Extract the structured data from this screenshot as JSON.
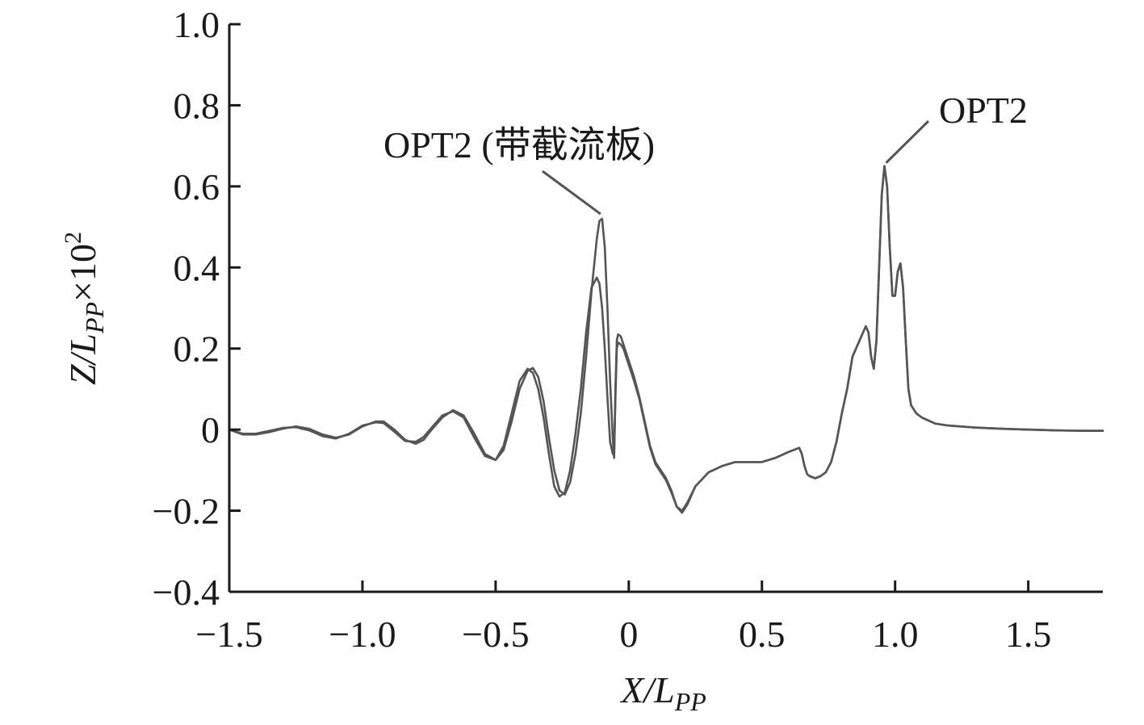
{
  "chart_data": {
    "type": "line",
    "title": "",
    "xlabel": {
      "main": "X/L",
      "sub": "PP"
    },
    "ylabel": {
      "main": "Z/L",
      "sub": "PP",
      "suffix": "×10",
      "sup": "2"
    },
    "xlim": [
      -1.5,
      1.78
    ],
    "ylim": [
      -0.4,
      1.0
    ],
    "xticks": [
      -1.5,
      -1.0,
      -0.5,
      0,
      0.5,
      1.0,
      1.5
    ],
    "xtick_labels": [
      "−1.5",
      "−1.0",
      "−0.5",
      "0",
      "0.5",
      "1.0",
      "1.5"
    ],
    "yticks": [
      -0.4,
      -0.2,
      0,
      0.2,
      0.4,
      0.6,
      0.8,
      1.0
    ],
    "ytick_labels": [
      "−0.4",
      "−0.2",
      "0",
      "0.2",
      "0.4",
      "0.6",
      "0.8",
      "1.0"
    ],
    "grid": false,
    "series": [
      {
        "name": "OPT2 (带截流板)",
        "x": [
          -1.5,
          -1.45,
          -1.4,
          -1.35,
          -1.3,
          -1.25,
          -1.2,
          -1.15,
          -1.1,
          -1.05,
          -1.0,
          -0.95,
          -0.92,
          -0.88,
          -0.84,
          -0.8,
          -0.77,
          -0.74,
          -0.7,
          -0.66,
          -0.62,
          -0.58,
          -0.54,
          -0.5,
          -0.47,
          -0.44,
          -0.41,
          -0.38,
          -0.36,
          -0.34,
          -0.32,
          -0.3,
          -0.28,
          -0.26,
          -0.24,
          -0.22,
          -0.2,
          -0.18,
          -0.16,
          -0.14,
          -0.12,
          -0.11,
          -0.1,
          -0.09,
          -0.08,
          -0.07,
          -0.06,
          -0.055,
          -0.05,
          -0.045,
          -0.04,
          -0.03,
          -0.02,
          -0.01,
          0.0,
          0.02,
          0.04,
          0.06,
          0.08,
          0.1,
          0.12,
          0.14,
          0.16,
          0.18,
          0.2,
          0.22,
          0.25,
          0.3,
          0.35,
          0.4,
          0.45,
          0.5,
          0.55,
          0.6,
          0.62,
          0.64,
          0.65,
          0.66,
          0.67,
          0.68,
          0.7,
          0.72,
          0.74,
          0.76,
          0.78,
          0.8,
          0.82,
          0.84,
          0.86,
          0.88,
          0.89,
          0.9,
          0.91,
          0.92,
          0.93,
          0.94,
          0.95,
          0.96,
          0.97,
          0.98,
          0.99,
          1.0,
          1.01,
          1.02,
          1.03,
          1.04,
          1.05,
          1.06,
          1.08,
          1.1,
          1.15,
          1.2,
          1.3,
          1.4,
          1.5,
          1.6,
          1.7,
          1.78
        ],
        "y": [
          0.0,
          -0.012,
          -0.012,
          -0.006,
          0.002,
          0.008,
          0.002,
          -0.012,
          -0.02,
          -0.012,
          0.008,
          0.02,
          0.02,
          0.0,
          -0.025,
          -0.035,
          -0.025,
          0.0,
          0.03,
          0.048,
          0.035,
          -0.01,
          -0.06,
          -0.075,
          -0.05,
          0.02,
          0.1,
          0.145,
          0.152,
          0.13,
          0.07,
          -0.02,
          -0.1,
          -0.15,
          -0.16,
          -0.13,
          -0.06,
          0.04,
          0.18,
          0.34,
          0.47,
          0.515,
          0.52,
          0.45,
          0.3,
          0.12,
          -0.02,
          -0.07,
          0.1,
          0.22,
          0.235,
          0.23,
          0.21,
          0.19,
          0.17,
          0.13,
          0.08,
          0.02,
          -0.04,
          -0.08,
          -0.1,
          -0.12,
          -0.15,
          -0.19,
          -0.205,
          -0.185,
          -0.14,
          -0.105,
          -0.09,
          -0.08,
          -0.08,
          -0.08,
          -0.07,
          -0.055,
          -0.05,
          -0.045,
          -0.06,
          -0.09,
          -0.11,
          -0.115,
          -0.12,
          -0.115,
          -0.105,
          -0.08,
          -0.03,
          0.04,
          0.1,
          0.18,
          0.21,
          0.24,
          0.255,
          0.24,
          0.18,
          0.15,
          0.22,
          0.4,
          0.58,
          0.65,
          0.6,
          0.45,
          0.33,
          0.33,
          0.39,
          0.41,
          0.35,
          0.22,
          0.1,
          0.06,
          0.04,
          0.03,
          0.015,
          0.01,
          0.005,
          0.002,
          0.0,
          -0.002,
          -0.003,
          -0.003
        ]
      },
      {
        "name": "OPT2",
        "x": [
          -1.5,
          -1.45,
          -1.4,
          -1.35,
          -1.3,
          -1.25,
          -1.2,
          -1.15,
          -1.1,
          -1.05,
          -1.0,
          -0.95,
          -0.92,
          -0.88,
          -0.84,
          -0.8,
          -0.77,
          -0.74,
          -0.7,
          -0.66,
          -0.62,
          -0.58,
          -0.54,
          -0.5,
          -0.47,
          -0.44,
          -0.41,
          -0.38,
          -0.36,
          -0.34,
          -0.32,
          -0.3,
          -0.28,
          -0.26,
          -0.24,
          -0.22,
          -0.2,
          -0.18,
          -0.16,
          -0.14,
          -0.12,
          -0.11,
          -0.1,
          -0.09,
          -0.08,
          -0.07,
          -0.06,
          -0.055,
          -0.05,
          -0.045,
          -0.04,
          -0.03,
          -0.02,
          -0.01,
          0.0,
          0.02,
          0.04,
          0.06,
          0.08,
          0.1,
          0.12,
          0.14,
          0.16,
          0.18,
          0.2,
          0.22,
          0.25,
          0.3,
          0.35,
          0.4,
          0.45,
          0.5,
          0.55,
          0.6,
          0.62,
          0.64,
          0.65,
          0.66,
          0.67,
          0.68,
          0.7,
          0.72,
          0.74,
          0.76,
          0.78,
          0.8,
          0.82,
          0.84,
          0.86,
          0.88,
          0.89,
          0.9,
          0.91,
          0.92,
          0.93,
          0.94,
          0.95,
          0.96,
          0.97,
          0.98,
          0.99,
          1.0,
          1.01,
          1.02,
          1.03,
          1.04,
          1.05,
          1.06,
          1.08,
          1.1,
          1.15,
          1.2,
          1.3,
          1.4,
          1.5,
          1.6,
          1.7,
          1.78
        ],
        "y": [
          0.0,
          -0.01,
          -0.01,
          -0.003,
          0.004,
          0.006,
          -0.002,
          -0.016,
          -0.022,
          -0.01,
          0.01,
          0.018,
          0.016,
          -0.005,
          -0.028,
          -0.03,
          -0.018,
          0.005,
          0.035,
          0.045,
          0.03,
          -0.02,
          -0.065,
          -0.075,
          -0.04,
          0.04,
          0.12,
          0.15,
          0.14,
          0.1,
          0.03,
          -0.06,
          -0.14,
          -0.165,
          -0.155,
          -0.1,
          -0.01,
          0.1,
          0.24,
          0.35,
          0.375,
          0.36,
          0.3,
          0.2,
          0.08,
          -0.03,
          -0.06,
          -0.06,
          0.08,
          0.2,
          0.215,
          0.21,
          0.2,
          0.18,
          0.16,
          0.12,
          0.075,
          0.015,
          -0.045,
          -0.085,
          -0.105,
          -0.125,
          -0.155,
          -0.19,
          -0.2,
          -0.18,
          -0.14,
          -0.105,
          -0.09,
          -0.08,
          -0.08,
          -0.08,
          -0.07,
          -0.055,
          -0.05,
          -0.045,
          -0.06,
          -0.09,
          -0.11,
          -0.115,
          -0.12,
          -0.115,
          -0.105,
          -0.08,
          -0.03,
          0.04,
          0.1,
          0.18,
          0.21,
          0.24,
          0.255,
          0.24,
          0.18,
          0.15,
          0.22,
          0.4,
          0.58,
          0.65,
          0.6,
          0.45,
          0.33,
          0.33,
          0.39,
          0.41,
          0.35,
          0.22,
          0.1,
          0.06,
          0.04,
          0.03,
          0.015,
          0.01,
          0.005,
          0.002,
          0.0,
          -0.002,
          -0.003,
          -0.003
        ]
      }
    ],
    "annotations": [
      {
        "text": "OPT2 (带截流板)",
        "points_to": {
          "x": -0.1,
          "y": 0.52
        }
      },
      {
        "text": "OPT2",
        "points_to": {
          "x": 0.96,
          "y": 0.65
        }
      }
    ]
  }
}
